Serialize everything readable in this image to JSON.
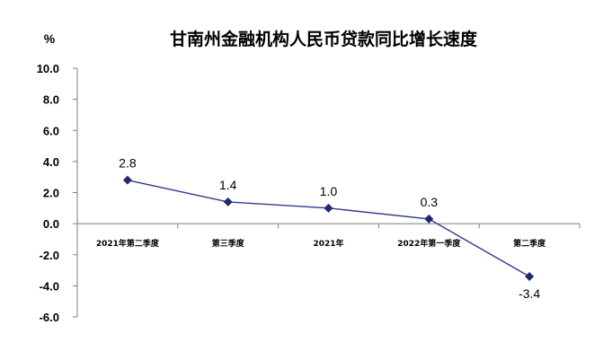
{
  "chart_data": {
    "type": "line",
    "title": "甘南州金融机构人民币贷款同比增长速度",
    "unit": "%",
    "xlabel": "",
    "ylabel": "",
    "categories": [
      "2021年第二季度",
      "第三季度",
      "2021年",
      "2022年第一季度",
      "第二季度"
    ],
    "series": [
      {
        "values": [
          2.8,
          1.4,
          1.0,
          0.3,
          -3.4
        ]
      }
    ],
    "data_labels": [
      "2.8",
      "1.4",
      "1.0",
      "0.3",
      "-3.4"
    ],
    "ylim": [
      -6.0,
      10.0
    ],
    "yticks": [
      "10.0",
      "8.0",
      "6.0",
      "4.0",
      "2.0",
      "0.0",
      "-2.0",
      "-4.0",
      "-6.0"
    ],
    "grid": false,
    "legend": "none",
    "colors": {
      "line": "#2f3b8f",
      "marker": "#1f2a6e",
      "axis": "#7f7f7f"
    }
  }
}
